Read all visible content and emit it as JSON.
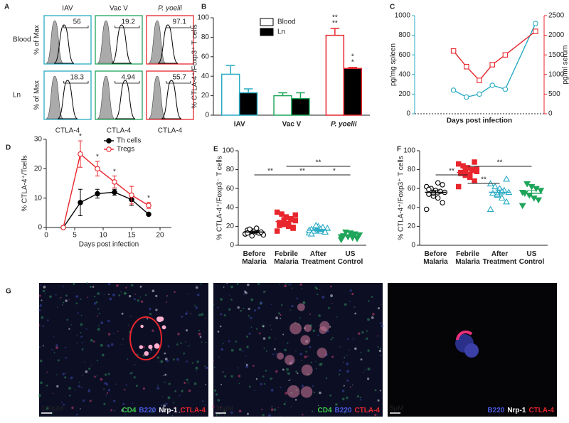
{
  "panel_labels": [
    "A",
    "B",
    "C",
    "D",
    "E",
    "F",
    "G"
  ],
  "flow": {
    "y_label": "% of Max",
    "x_label": "CTLA-4",
    "columns": [
      {
        "name": "IAV",
        "color": "#29abc4",
        "style": "normal"
      },
      {
        "name": "Vac V",
        "color": "#1fa55a",
        "style": "normal"
      },
      {
        "name": "P. yoelii",
        "color": "#e8262d",
        "style": "italic"
      }
    ],
    "rows": [
      {
        "name": "Blood",
        "gates": [
          56,
          19.2,
          97.1
        ]
      },
      {
        "name": "Ln",
        "gates": [
          18.3,
          4.94,
          55.7
        ]
      }
    ]
  },
  "chart_data": [
    {
      "type": "bar",
      "ylabel": "% CTLA-4⁺/Foxp3⁺ T cells",
      "categories": [
        "IAV",
        "Vac V",
        "P. yoelii"
      ],
      "category_colors": [
        "#29abc4",
        "#1fa55a",
        "#e8262d"
      ],
      "category_styles": [
        "normal",
        "normal",
        "italic"
      ],
      "series": [
        {
          "name": "Blood",
          "color": "#ffffff",
          "values": [
            42,
            20,
            82
          ],
          "errors": [
            9,
            3,
            7
          ]
        },
        {
          "name": "Ln",
          "color": "#000000",
          "values": [
            23,
            17,
            48
          ],
          "errors": [
            4,
            6,
            1
          ]
        }
      ],
      "ylim": [
        0,
        100
      ],
      "yticks": [
        0,
        20,
        40,
        60,
        80,
        100
      ],
      "legend": "upper center",
      "annotations": [
        {
          "text": "**",
          "color": "#29abc4"
        },
        {
          "text": "**",
          "color": "#1fa55a"
        },
        {
          "text": "*",
          "color": "#29abc4"
        },
        {
          "text": "*",
          "color": "#1fa55a"
        }
      ]
    },
    {
      "type": "line",
      "xlabel": "Days post infection",
      "ylabel": "pg/mg spleen",
      "y2label": "pg/ml serum",
      "x": [
        9,
        12,
        15,
        18,
        21,
        28
      ],
      "xlim": [
        0,
        30
      ],
      "ylim": [
        0,
        1000
      ],
      "yticks": [
        0,
        200,
        400,
        600,
        800,
        1000
      ],
      "y2lim": [
        0,
        2500
      ],
      "y2ticks": [
        0,
        500,
        1000,
        1500,
        2000,
        2500
      ],
      "series": [
        {
          "color": "#29abc4",
          "marker": "circle-open",
          "values": [
            240,
            170,
            200,
            290,
            250,
            920
          ]
        },
        {
          "color": "#e8262d",
          "marker": "square-open",
          "axis": "y2",
          "values": [
            1600,
            1200,
            850,
            1250,
            1500,
            2100
          ]
        }
      ]
    },
    {
      "type": "line",
      "xlabel": "Days post infection",
      "ylabel": "% CTLA-4⁺/Tcells",
      "x": [
        3,
        6,
        9,
        12,
        15,
        18
      ],
      "xlim": [
        0,
        22
      ],
      "xticks": [
        0,
        5,
        10,
        15,
        20
      ],
      "ylim": [
        0,
        30
      ],
      "yticks": [
        0,
        10,
        20,
        30
      ],
      "legend": "upper right",
      "series": [
        {
          "name": "Th cells",
          "color": "#000000",
          "marker": "circle",
          "values": [
            0,
            8.5,
            11.5,
            12,
            9.5,
            4.5
          ],
          "errors": [
            0,
            4.5,
            1.5,
            1,
            2,
            0.5
          ]
        },
        {
          "name": "Tregs",
          "color": "#e8262d",
          "marker": "circle-open",
          "values": [
            0,
            25,
            20,
            15.5,
            11,
            7.5
          ],
          "errors": [
            0,
            4.5,
            2.5,
            2,
            3,
            1
          ]
        }
      ],
      "annotations": [
        "*",
        "*",
        "*",
        "*"
      ]
    },
    {
      "type": "dot",
      "ylabel": "% CTLA-4⁺/Foxp3⁻ T cells",
      "categories": [
        "Before\nMalaria",
        "Febrile\nMalaria",
        "After\nTreatment",
        "US\nControl"
      ],
      "colors": [
        "#000000",
        "#e8262d",
        "#29abc4",
        "#1fa55a"
      ],
      "markers": [
        "circle-open",
        "square",
        "triangle-open",
        "triangle-down"
      ],
      "values": [
        [
          12,
          13,
          14,
          15,
          16,
          11,
          13,
          15,
          17,
          12,
          14,
          18,
          10,
          13
        ],
        [
          15,
          18,
          20,
          22,
          24,
          26,
          28,
          30,
          33,
          35,
          19,
          23,
          27,
          21,
          32
        ],
        [
          13,
          14,
          15,
          16,
          17,
          18,
          19,
          20,
          15,
          16,
          14,
          17,
          21,
          12
        ],
        [
          6,
          7,
          8,
          9,
          10,
          11,
          12,
          13,
          14,
          9,
          8,
          10
        ]
      ],
      "means": [
        14,
        25,
        16,
        10
      ],
      "sems": [
        1,
        2,
        1,
        1
      ],
      "ylim": [
        0,
        100
      ],
      "yticks": [
        0,
        20,
        40,
        60,
        80,
        100
      ],
      "brackets": [
        "**",
        "**",
        "**",
        "*"
      ]
    },
    {
      "type": "dot",
      "ylabel": "% CTLA-4⁺/Foxp3⁺ T cells",
      "categories": [
        "Before\nMalaria",
        "Febrile\nMalaria",
        "After\nTreatment",
        "US\nControl"
      ],
      "colors": [
        "#000000",
        "#e8262d",
        "#29abc4",
        "#1fa55a"
      ],
      "markers": [
        "circle-open",
        "square",
        "triangle-open",
        "triangle-down"
      ],
      "values": [
        [
          38,
          45,
          50,
          52,
          54,
          56,
          57,
          58,
          60,
          62,
          64,
          66,
          55,
          59
        ],
        [
          62,
          68,
          72,
          74,
          76,
          78,
          80,
          82,
          84,
          86,
          88,
          75,
          79,
          77,
          81
        ],
        [
          38,
          46,
          50,
          53,
          55,
          56,
          58,
          60,
          62,
          65,
          70,
          57,
          54
        ],
        [
          42,
          48,
          50,
          53,
          55,
          58,
          60,
          62,
          65,
          56
        ]
      ],
      "means": [
        56,
        77,
        56,
        55
      ],
      "sems": [
        2,
        2,
        2.5,
        3
      ],
      "ylim": [
        0,
        100
      ],
      "yticks": [
        0,
        20,
        40,
        60,
        80,
        100
      ],
      "brackets": [
        "**",
        "**",
        "**"
      ]
    }
  ],
  "images": [
    {
      "channels": [
        {
          "name": "CD4",
          "color": "#3ec94a"
        },
        {
          "name": "B220",
          "color": "#4a5ae0"
        },
        {
          "name": "Nrp-1",
          "color": "#ffffff"
        },
        {
          "name": "CTLA-4",
          "color": "#e8262d"
        }
      ],
      "scale": "100µM"
    },
    {
      "channels": [
        {
          "name": "CD4",
          "color": "#3ec94a"
        },
        {
          "name": "B220",
          "color": "#4a5ae0"
        },
        {
          "name": "CTLA-4",
          "color": "#e8262d"
        }
      ],
      "scale": "30µM"
    },
    {
      "channels": [
        {
          "name": "B220",
          "color": "#4a5ae0"
        },
        {
          "name": "Nrp-1",
          "color": "#ffffff"
        },
        {
          "name": "CTLA-4",
          "color": "#e8262d"
        }
      ],
      "scale": "5µM"
    }
  ]
}
